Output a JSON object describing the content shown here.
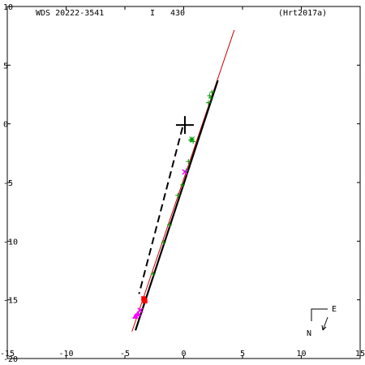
{
  "header": {
    "pair_name": "WDS 20222-3541",
    "grade_flag": "I",
    "grade_value": "430",
    "reference": "(Hrt2017a)"
  },
  "compass": {
    "east_label": "E",
    "north_label": "N"
  },
  "chart_data": {
    "type": "scatter",
    "title": "",
    "xlabel": "",
    "ylabel": "",
    "xlim": [
      -15,
      15
    ],
    "ylim": [
      -20,
      10
    ],
    "xticks": [
      -15,
      -10,
      -5,
      0,
      5,
      10,
      15
    ],
    "yticks": [
      10,
      5,
      0,
      -5,
      -10,
      -15,
      -20
    ],
    "x_tick_labels": [
      "-15",
      "-10",
      "-5",
      "0",
      "5",
      "10",
      "15"
    ],
    "y_tick_labels": [
      "10",
      "5",
      "0",
      "-5",
      "-10",
      "-15",
      "-20"
    ],
    "grid": false,
    "legend": "none",
    "primary": {
      "x": 0.1,
      "y": -0.1
    },
    "node_line": {
      "x1": -4.4,
      "y1": -17.7,
      "x2": 4.3,
      "y2": 8.0,
      "color": "#cc0000"
    },
    "orbit_arc": {
      "x1": -4.1,
      "y1": -17.6,
      "x2": 2.9,
      "y2": 3.7,
      "color": "#000000"
    },
    "periastron_line": {
      "x1": -0.1,
      "y1": -0.3,
      "x2": -3.8,
      "y2": -14.5,
      "color": "#000000"
    },
    "series": [
      {
        "marker": "plus",
        "color": "#009900",
        "points": [
          [
            2.4,
            2.7
          ],
          [
            2.3,
            2.2
          ],
          [
            2.1,
            1.8
          ],
          [
            2.2,
            2.4
          ],
          [
            0.6,
            -1.4
          ],
          [
            0.8,
            -1.5
          ],
          [
            0.4,
            -3.2
          ],
          [
            0.2,
            -4.0
          ],
          [
            -0.1,
            -5.2
          ],
          [
            -0.5,
            -6.1
          ],
          [
            -1.2,
            -8.6
          ],
          [
            -1.7,
            -10.1
          ],
          [
            -2.6,
            -12.8
          ]
        ]
      },
      {
        "marker": "star",
        "color": "#009900",
        "points": [
          [
            0.7,
            -1.3
          ]
        ]
      },
      {
        "marker": "x",
        "color": "#ff00ff",
        "points": [
          [
            0.1,
            -4.1
          ],
          [
            -3.7,
            -15.9
          ]
        ]
      },
      {
        "marker": "triangle",
        "color": "#ff00ff",
        "points": [
          [
            -4.1,
            -16.4
          ],
          [
            -3.9,
            -16.2
          ]
        ]
      },
      {
        "marker": "square",
        "color": "#ff0000",
        "points": [
          [
            -3.4,
            -14.9
          ],
          [
            -3.3,
            -15.1
          ]
        ]
      }
    ]
  }
}
